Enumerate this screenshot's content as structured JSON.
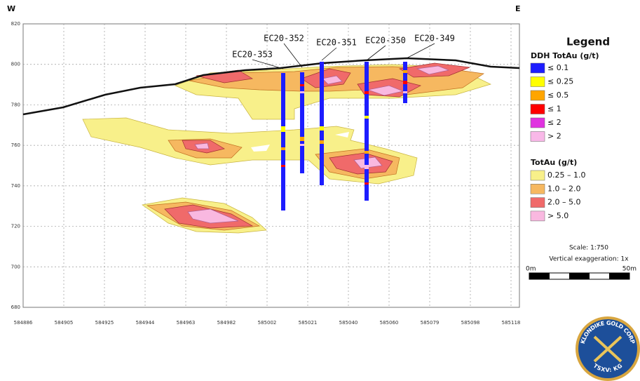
{
  "orientation": {
    "west": "W",
    "east": "E"
  },
  "y_axis": {
    "ticks": [
      820,
      800,
      780,
      760,
      740,
      720,
      700,
      680
    ]
  },
  "x_axis": {
    "ticks": [
      584886,
      584905,
      584925,
      584944,
      584963,
      584982,
      585002,
      585021,
      585040,
      585060,
      585079,
      585098,
      585118
    ]
  },
  "drill_holes": [
    {
      "label": "EC20-353"
    },
    {
      "label": "EC20-352"
    },
    {
      "label": "EC20-351"
    },
    {
      "label": "EC20-350"
    },
    {
      "label": "EC20-349"
    }
  ],
  "legend": {
    "title": "Legend",
    "ddh": {
      "title": "DDH TotAu (g/t)",
      "items": [
        {
          "label": "≤ 0.1",
          "color": "#1d1dff"
        },
        {
          "label": "≤ 0.25",
          "color": "#ffff00"
        },
        {
          "label": "≤ 0.5",
          "color": "#ffa500"
        },
        {
          "label": "≤ 1",
          "color": "#ff0000"
        },
        {
          "label": "≤ 2",
          "color": "#e033e0"
        },
        {
          "label": "> 2",
          "color": "#f9b8e8"
        }
      ]
    },
    "contours": {
      "title": "TotAu (g/t)",
      "items": [
        {
          "label": "0.25 – 1.0",
          "color": "#f8f08a"
        },
        {
          "label": "1.0 – 2.0",
          "color": "#f6b860"
        },
        {
          "label": "2.0 – 5.0",
          "color": "#f06a6a"
        },
        {
          "label": "> 5.0",
          "color": "#f9b8e0"
        }
      ]
    }
  },
  "scale": {
    "ratio": "Scale: 1:750",
    "exaggeration": "Vertical exaggeration: 1x",
    "start": "0m",
    "end": "50m"
  },
  "logo": {
    "name": "KLONDIKE GOLD CORP",
    "ticker": "TSXV: KG"
  }
}
